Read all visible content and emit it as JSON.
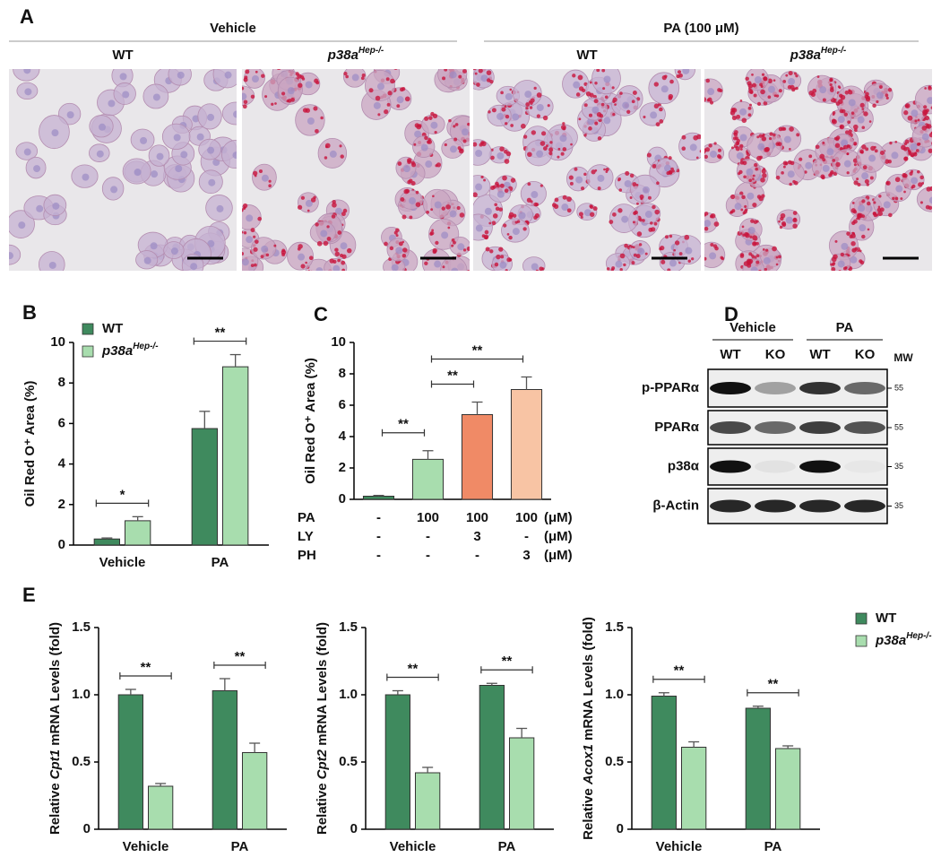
{
  "panel_a": {
    "label": "A",
    "groups": [
      {
        "title": "Vehicle"
      },
      {
        "title": "PA (100 μM)"
      }
    ],
    "columns": [
      {
        "text": "WT"
      },
      {
        "text": "p38a",
        "sup": "Hep-/-"
      },
      {
        "text": "WT"
      },
      {
        "text": "p38a",
        "sup": "Hep-/-"
      }
    ]
  },
  "panel_d": {
    "label": "D",
    "groups": [
      "Vehicle",
      "PA"
    ],
    "lanes": [
      "WT",
      "KO",
      "WT",
      "KO"
    ],
    "mw_title": "MW",
    "rows": [
      {
        "label": "p-PPARα",
        "mw": 55
      },
      {
        "label": "PPARα",
        "mw": 55
      },
      {
        "label": "p38α",
        "mw": 35
      },
      {
        "label": "β-Actin",
        "mw": 35
      }
    ]
  },
  "chart_data": [
    {
      "type": "grouped_bar",
      "panel": "B",
      "ylabel": "Oil Red O⁺ Area (%)",
      "categories": [
        "Vehicle",
        "PA"
      ],
      "series": [
        {
          "name": "WT",
          "color": "#3f8a5e",
          "values": [
            0.3,
            5.75
          ],
          "errors": [
            0.05,
            0.85
          ]
        },
        {
          "name": "p38a",
          "name_sup": "Hep-/-",
          "color": "#a8ddae",
          "values": [
            1.2,
            8.8
          ],
          "errors": [
            0.2,
            0.6
          ]
        }
      ],
      "ylim": [
        0,
        10
      ],
      "yticks": [
        0,
        2,
        4,
        6,
        8,
        10
      ],
      "legend": "upper left",
      "significance": [
        "*",
        "**"
      ]
    },
    {
      "type": "bar",
      "panel": "C",
      "ylabel": "Oil Red O⁺ Area (%)",
      "categories": [
        null,
        null,
        null,
        null
      ],
      "values": [
        0.2,
        2.55,
        5.4,
        7.0
      ],
      "errors": [
        0.05,
        0.55,
        0.8,
        0.8
      ],
      "colors": [
        "#3f8a5e",
        "#a8ddae",
        "#f08a66",
        "#f8c4a4"
      ],
      "ylim": [
        0,
        10
      ],
      "yticks": [
        0,
        2,
        4,
        6,
        8,
        10
      ],
      "significance": [
        "**",
        "**",
        "**"
      ],
      "conditions": [
        {
          "label": "PA",
          "values": [
            "-",
            "100",
            "100",
            "100"
          ],
          "unit": "(μM)"
        },
        {
          "label": "LY",
          "values": [
            "-",
            "-",
            "3",
            "-"
          ],
          "unit": "(μM)"
        },
        {
          "label": "PH",
          "values": [
            "-",
            "-",
            "-",
            "3"
          ],
          "unit": "(μM)"
        }
      ]
    },
    {
      "type": "grouped_bar",
      "panel": "E",
      "ylabel": {
        "pre": "Relative ",
        "gene": "Cpt1",
        "post": " mRNA Levels (fold)"
      },
      "categories": [
        "Vehicle",
        "PA"
      ],
      "series": [
        {
          "color": "#3f8a5e",
          "values": [
            1.0,
            1.03
          ],
          "errors": [
            0.04,
            0.09
          ]
        },
        {
          "color": "#a8ddae",
          "values": [
            0.32,
            0.57
          ],
          "errors": [
            0.02,
            0.07
          ]
        }
      ],
      "ylim": [
        0,
        1.5
      ],
      "yticks": [
        0,
        0.5,
        {
          "value": 1,
          "label": "1.0"
        },
        1.5
      ],
      "significance": [
        "**",
        "**"
      ]
    },
    {
      "type": "grouped_bar",
      "ylabel": {
        "pre": "Relative ",
        "gene": "Cpt2",
        "post": " mRNA Levels (fold)"
      },
      "categories": [
        "Vehicle",
        "PA"
      ],
      "series": [
        {
          "color": "#3f8a5e",
          "values": [
            1.0,
            1.07
          ],
          "errors": [
            0.03,
            0.015
          ]
        },
        {
          "color": "#a8ddae",
          "values": [
            0.42,
            0.68
          ],
          "errors": [
            0.04,
            0.07
          ]
        }
      ],
      "ylim": [
        0,
        1.5
      ],
      "yticks": [
        0,
        0.5,
        {
          "value": 1,
          "label": "1.0"
        },
        1.5
      ],
      "significance": [
        "**",
        "**"
      ]
    },
    {
      "type": "grouped_bar",
      "ylabel": {
        "pre": "Relative ",
        "gene": "Acox1",
        "post": " mRNA Levels (fold)"
      },
      "categories": [
        "Vehicle",
        "PA"
      ],
      "series": [
        {
          "name": "WT",
          "color": "#3f8a5e",
          "values": [
            0.99,
            0.9
          ],
          "errors": [
            0.025,
            0.015
          ]
        },
        {
          "name": "p38a",
          "name_sup": "Hep-/-",
          "color": "#a8ddae",
          "values": [
            0.61,
            0.6
          ],
          "errors": [
            0.04,
            0.02
          ]
        }
      ],
      "ylim": [
        0,
        1.5
      ],
      "yticks": [
        0,
        0.5,
        {
          "value": 1,
          "label": "1.0"
        },
        1.5
      ],
      "legend": "right",
      "significance": [
        "**",
        "**"
      ]
    }
  ]
}
